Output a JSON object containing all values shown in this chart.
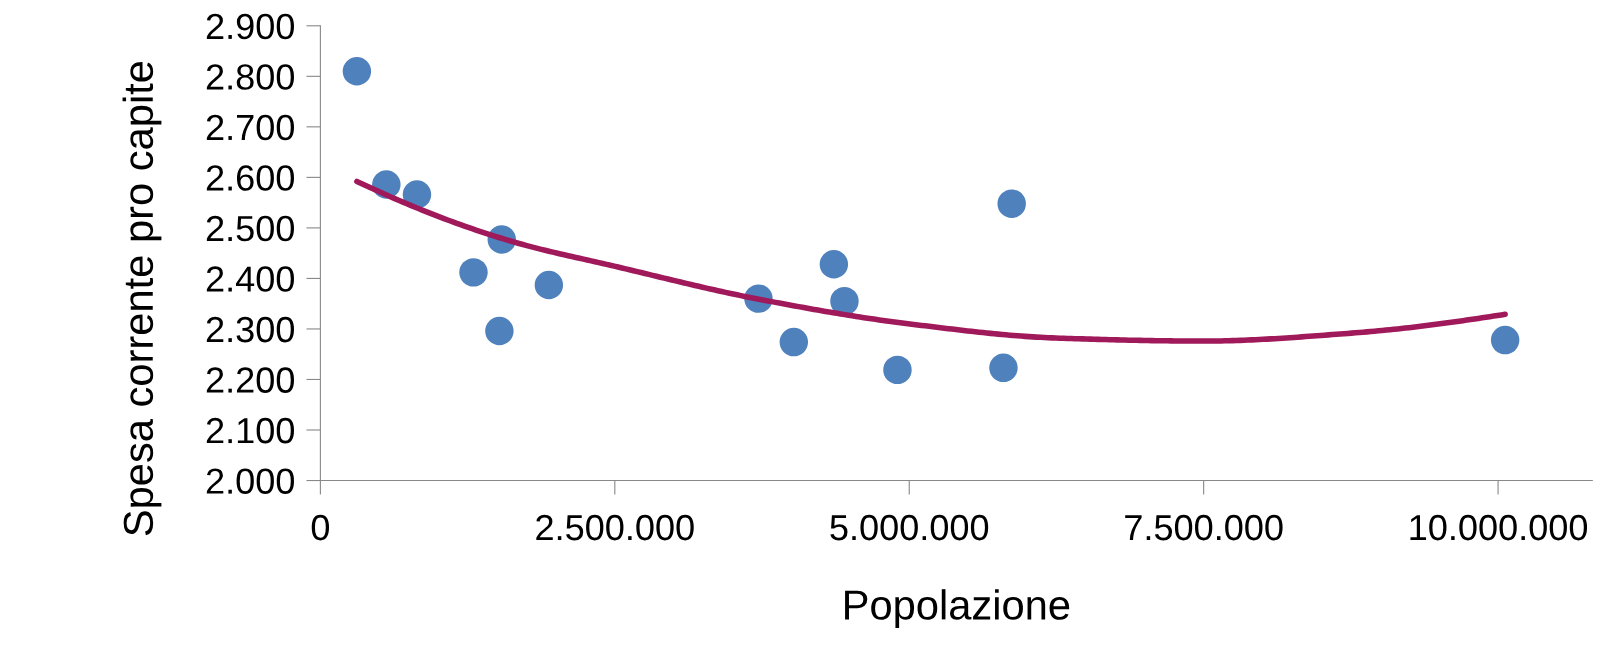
{
  "chart_data": {
    "type": "scatter",
    "xlabel": "Popolazione",
    "ylabel": "Spesa corrente pro capite",
    "xlim": [
      0,
      10800000
    ],
    "xticks": [
      {
        "value": 0,
        "label": "0"
      },
      {
        "value": 2500000,
        "label": "2.500.000"
      },
      {
        "value": 5000000,
        "label": "5.000.000"
      },
      {
        "value": 7500000,
        "label": "7.500.000"
      },
      {
        "value": 10000000,
        "label": "10.000.000"
      }
    ],
    "ylim": [
      2000,
      2900
    ],
    "yticks": [
      {
        "value": 2000,
        "label": "2.000"
      },
      {
        "value": 2100,
        "label": "2.100"
      },
      {
        "value": 2200,
        "label": "2.200"
      },
      {
        "value": 2300,
        "label": "2.300"
      },
      {
        "value": 2400,
        "label": "2.400"
      },
      {
        "value": 2500,
        "label": "2.500"
      },
      {
        "value": 2600,
        "label": "2.600"
      },
      {
        "value": 2700,
        "label": "2.700"
      },
      {
        "value": 2800,
        "label": "2.800"
      },
      {
        "value": 2900,
        "label": "2.900"
      }
    ],
    "grid": false,
    "legend": false,
    "marker": "circle",
    "series": [
      {
        "color": "#4f81bd",
        "x": [
          310000,
          560000,
          820000,
          1300000,
          1520000,
          1540000,
          1940000,
          3720000,
          4020000,
          4360000,
          4450000,
          4900000,
          5800000,
          5870000,
          10060000
        ],
        "values": [
          2810,
          2586,
          2566,
          2412,
          2296,
          2477,
          2387,
          2360,
          2274,
          2428,
          2355,
          2219,
          2223,
          2548,
          2278
        ]
      },
      {
        "type": "line",
        "marker": "none",
        "color": "#a0195a",
        "x": [
          310000,
          1630000,
          2500000,
          3720000,
          5000000,
          6250000,
          7500000,
          8770000,
          10060000
        ],
        "values": [
          2592,
          2473,
          2424,
          2359,
          2310,
          2282,
          2276,
          2292,
          2329
        ]
      }
    ]
  }
}
